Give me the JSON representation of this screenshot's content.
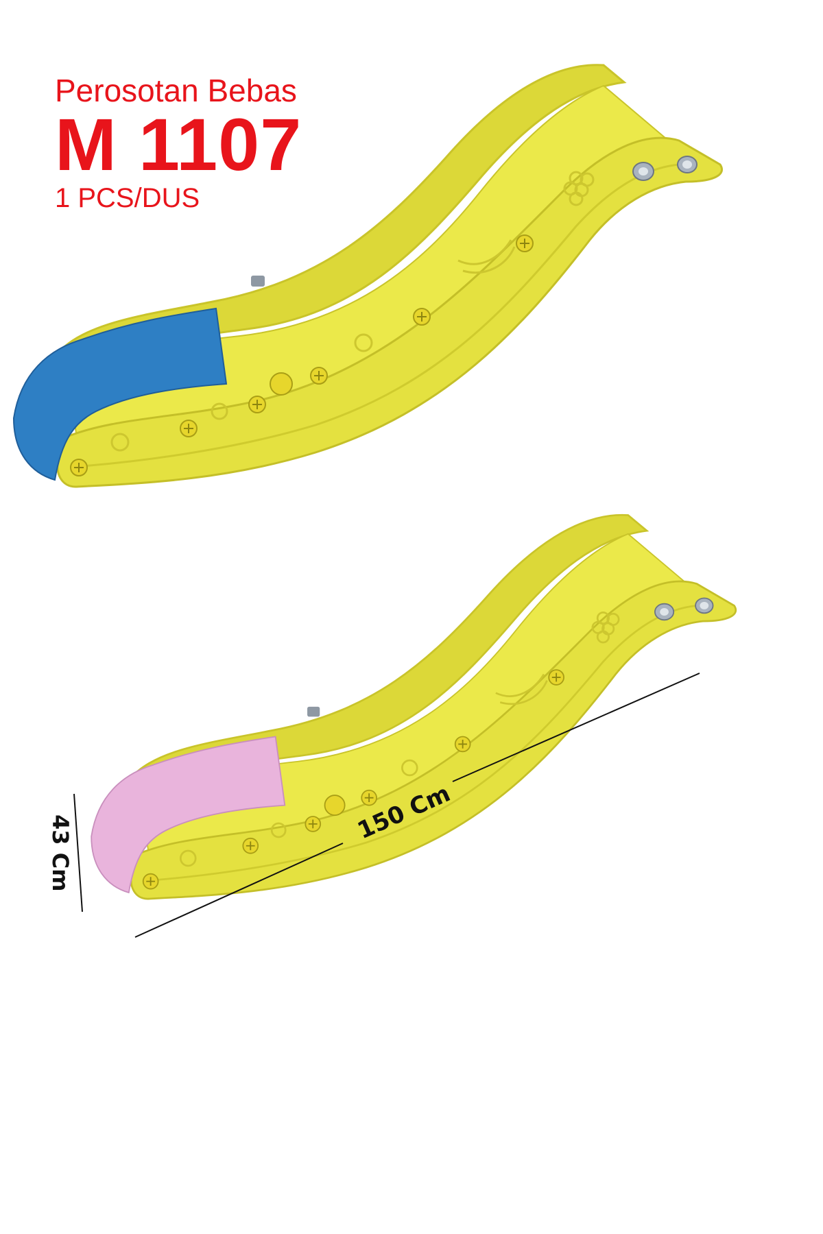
{
  "product": {
    "name": "Perosotan Bebas",
    "code": "M 1107",
    "packaging": "1 PCS/DUS"
  },
  "variants": [
    {
      "color_name": "blue",
      "tip_color": "#2e7fc4"
    },
    {
      "color_name": "pink",
      "tip_color": "#e9b4dc"
    }
  ],
  "body_color": "#e7e544",
  "dimensions": {
    "length": "150 Cm",
    "height": "43 Cm"
  }
}
